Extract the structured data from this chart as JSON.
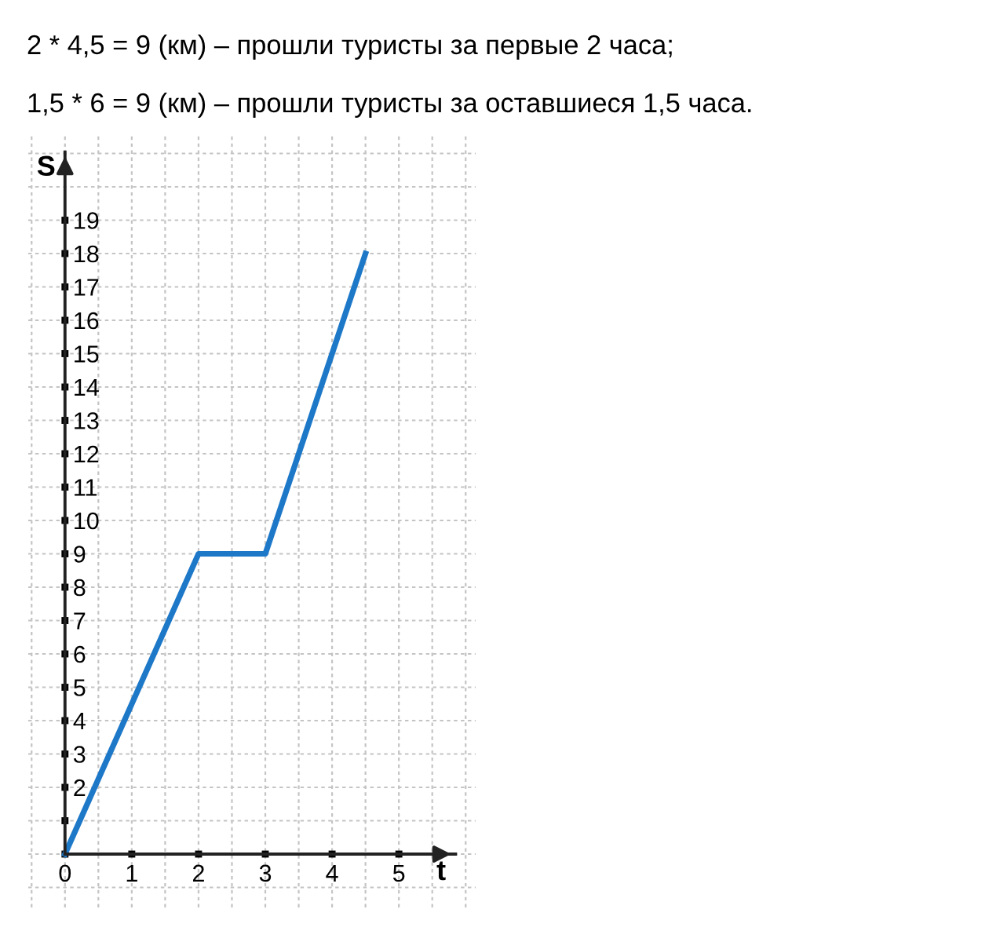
{
  "chart_data": {
    "type": "line",
    "title": "2 * 4,5 = 9 (км) – прошли туристы за первые 2 часа;",
    "subtitle": "1,5 * 6 = 9 (км) – прошли туристы за оставшиеся 1,5 часа.",
    "xlabel": "t",
    "ylabel": "S",
    "series": [
      {
        "color": "#1e78c8",
        "x": [
          0,
          2,
          3,
          4.5
        ],
        "values": [
          0,
          9,
          9,
          18
        ]
      }
    ],
    "xlim": [
      -0.55,
      6.15
    ],
    "ylim": [
      -1.6,
      21.6
    ],
    "xticks": [
      0,
      1,
      2,
      3,
      4,
      5
    ],
    "yticks": [
      {
        "value": 1,
        "label": null
      },
      2,
      3,
      4,
      5,
      6,
      7,
      8,
      9,
      10,
      11,
      12,
      13,
      14,
      15,
      16,
      17,
      18,
      19
    ],
    "grid": true
  }
}
